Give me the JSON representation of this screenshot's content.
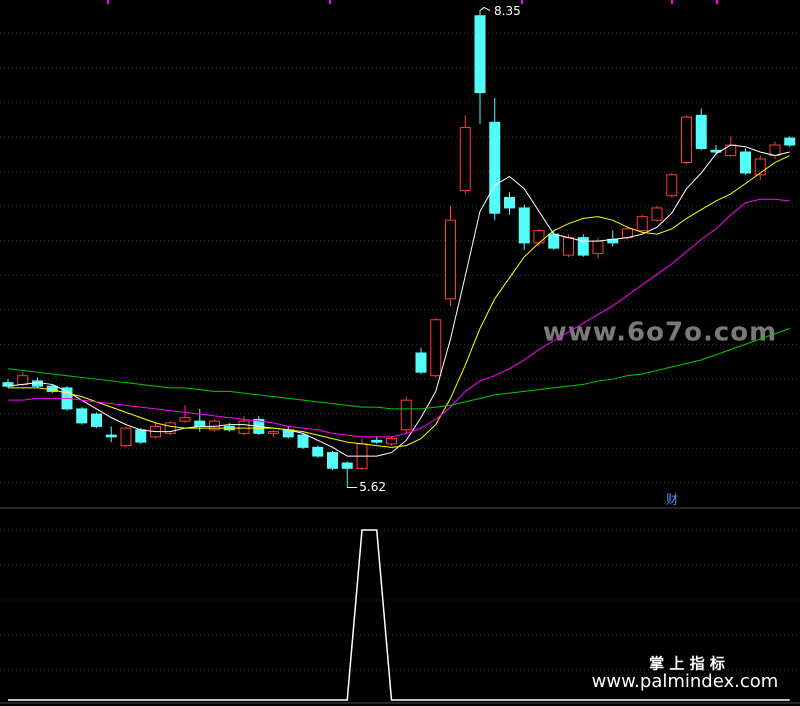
{
  "chart_data": [
    {
      "type": "candlestick",
      "open": [
        6.22,
        6.21,
        6.23,
        6.2,
        6.19,
        6.07,
        6.04,
        5.92,
        5.86,
        5.95,
        5.91,
        5.93,
        6.0,
        6.0,
        5.95,
        5.97,
        5.93,
        6.01,
        5.93,
        5.95,
        5.92,
        5.85,
        5.82,
        5.76,
        5.73,
        5.89,
        5.87,
        5.95,
        6.39,
        6.26,
        6.7,
        7.32,
        8.32,
        7.71,
        7.28,
        7.22,
        7.02,
        7.07,
        6.95,
        7.05,
        6.96,
        7.04,
        7.05,
        7.09,
        7.15,
        7.29,
        7.48,
        7.75,
        7.55,
        7.52,
        7.54,
        7.41,
        7.52,
        7.62
      ],
      "high": [
        6.24,
        6.28,
        6.25,
        6.21,
        6.2,
        6.08,
        6.05,
        5.97,
        5.97,
        5.96,
        5.99,
        6.0,
        6.09,
        6.07,
        6.01,
        5.99,
        6.03,
        6.03,
        5.95,
        5.97,
        5.93,
        5.86,
        5.83,
        5.77,
        5.9,
        5.91,
        5.91,
        6.14,
        6.42,
        6.59,
        7.23,
        7.75,
        8.35,
        7.85,
        7.31,
        7.24,
        7.1,
        7.09,
        7.07,
        7.07,
        7.05,
        7.09,
        7.11,
        7.18,
        7.23,
        7.42,
        7.75,
        7.79,
        7.58,
        7.63,
        7.56,
        7.52,
        7.6,
        7.63
      ],
      "low": [
        6.19,
        6.2,
        6.19,
        6.16,
        6.06,
        5.98,
        5.96,
        5.88,
        5.85,
        5.87,
        5.9,
        5.92,
        5.99,
        5.94,
        5.94,
        5.94,
        5.92,
        5.92,
        5.91,
        5.9,
        5.84,
        5.79,
        5.72,
        5.62,
        5.72,
        5.87,
        5.86,
        5.93,
        6.27,
        6.25,
        6.66,
        7.3,
        7.7,
        7.15,
        7.18,
        6.98,
        7.0,
        6.98,
        6.94,
        6.94,
        6.93,
        7.0,
        7.04,
        7.08,
        7.14,
        7.28,
        7.47,
        7.55,
        7.52,
        7.51,
        7.41,
        7.38,
        7.5,
        7.57
      ],
      "close": [
        6.2,
        6.26,
        6.2,
        6.17,
        6.07,
        5.99,
        5.97,
        5.91,
        5.96,
        5.88,
        5.97,
        5.99,
        6.02,
        5.97,
        6.0,
        5.95,
        6.0,
        5.93,
        5.94,
        5.91,
        5.85,
        5.8,
        5.73,
        5.73,
        5.87,
        5.88,
        5.9,
        6.12,
        6.28,
        6.58,
        7.15,
        7.68,
        7.88,
        7.19,
        7.22,
        7.02,
        7.09,
        6.99,
        7.05,
        6.95,
        7.03,
        7.02,
        7.1,
        7.17,
        7.22,
        7.41,
        7.74,
        7.56,
        7.54,
        7.58,
        7.42,
        7.5,
        7.58,
        7.58
      ],
      "up_color": "#ff3c3c",
      "down_color": "#54fcfc",
      "series": [
        {
          "color": "#ffffff",
          "values": [
            6.2,
            6.21,
            6.22,
            6.21,
            6.17,
            6.12,
            6.07,
            6.02,
            5.98,
            5.95,
            5.94,
            5.94,
            5.96,
            5.97,
            5.97,
            5.98,
            5.98,
            5.97,
            5.96,
            5.95,
            5.93,
            5.89,
            5.85,
            5.8,
            5.8,
            5.8,
            5.82,
            5.89,
            6.02,
            6.17,
            6.47,
            6.83,
            7.2,
            7.35,
            7.4,
            7.33,
            7.2,
            7.07,
            7.05,
            7.03,
            7.03,
            7.04,
            7.05,
            7.07,
            7.11,
            7.19,
            7.33,
            7.42,
            7.53,
            7.58,
            7.57,
            7.54,
            7.52,
            7.54
          ]
        },
        {
          "color": "#ffff00",
          "values": [
            6.19,
            6.19,
            6.19,
            6.18,
            6.16,
            6.14,
            6.11,
            6.08,
            6.05,
            6.02,
            5.99,
            5.97,
            5.96,
            5.96,
            5.96,
            5.96,
            5.96,
            5.96,
            5.96,
            5.95,
            5.94,
            5.92,
            5.9,
            5.88,
            5.87,
            5.86,
            5.85,
            5.86,
            5.9,
            5.98,
            6.13,
            6.32,
            6.53,
            6.7,
            6.82,
            6.94,
            7.02,
            7.09,
            7.13,
            7.16,
            7.17,
            7.15,
            7.11,
            7.08,
            7.07,
            7.1,
            7.16,
            7.21,
            7.26,
            7.3,
            7.36,
            7.42,
            7.48,
            7.52
          ]
        },
        {
          "color": "#ff00ff",
          "values": [
            6.12,
            6.12,
            6.13,
            6.13,
            6.13,
            6.12,
            6.11,
            6.1,
            6.09,
            6.08,
            6.07,
            6.06,
            6.05,
            6.04,
            6.03,
            6.02,
            6.01,
            6.0,
            5.99,
            5.97,
            5.96,
            5.95,
            5.93,
            5.92,
            5.91,
            5.91,
            5.91,
            5.93,
            5.96,
            6.01,
            6.08,
            6.17,
            6.23,
            6.26,
            6.3,
            6.35,
            6.41,
            6.46,
            6.51,
            6.56,
            6.61,
            6.66,
            6.72,
            6.78,
            6.84,
            6.9,
            6.97,
            7.04,
            7.1,
            7.18,
            7.25,
            7.27,
            7.27,
            7.26
          ]
        },
        {
          "color": "#00cc00",
          "values": [
            6.3,
            6.29,
            6.28,
            6.27,
            6.26,
            6.25,
            6.24,
            6.23,
            6.22,
            6.21,
            6.2,
            6.19,
            6.19,
            6.18,
            6.17,
            6.17,
            6.16,
            6.15,
            6.14,
            6.13,
            6.12,
            6.11,
            6.1,
            6.09,
            6.08,
            6.08,
            6.07,
            6.07,
            6.07,
            6.08,
            6.09,
            6.11,
            6.13,
            6.15,
            6.16,
            6.17,
            6.18,
            6.19,
            6.2,
            6.21,
            6.23,
            6.24,
            6.26,
            6.27,
            6.29,
            6.31,
            6.33,
            6.35,
            6.38,
            6.41,
            6.44,
            6.47,
            6.5,
            6.53
          ]
        }
      ],
      "ylim": [
        5.52,
        8.41
      ],
      "grid": true,
      "high_label": "8.35",
      "low_label": "5.62",
      "marker": "财"
    },
    {
      "type": "line",
      "color": "#ffffff",
      "values": [
        0,
        0,
        0,
        0,
        0,
        0,
        0,
        0,
        0,
        0,
        0,
        0,
        0,
        0,
        0,
        0,
        0,
        0,
        0,
        0,
        0,
        0,
        0,
        0,
        1,
        1,
        0,
        0,
        0,
        0,
        0,
        0,
        0,
        0,
        0,
        0,
        0,
        0,
        0,
        0,
        0,
        0,
        0,
        0,
        0,
        0,
        0,
        0,
        0,
        0,
        0,
        0,
        0,
        0
      ],
      "ylim": [
        0,
        1
      ],
      "grid": true
    }
  ],
  "watermarks": [
    "www.6o7o.com",
    "掌 上 指 标",
    "www.palmindex.com"
  ]
}
